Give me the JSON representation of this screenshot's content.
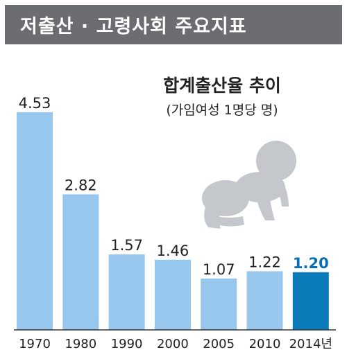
{
  "header": {
    "title": "저출산 · 고령사회 주요지표"
  },
  "chart_data": {
    "type": "bar",
    "title": "합계출산율 추이",
    "subtitle": "(가임여성 1명당 명)",
    "categories": [
      "1970",
      "1980",
      "1990",
      "2000",
      "2005",
      "2010",
      "2014년"
    ],
    "values": [
      4.53,
      2.82,
      1.57,
      1.46,
      1.07,
      1.22,
      1.2
    ],
    "value_labels": [
      "4.53",
      "2.82",
      "1.57",
      "1.46",
      "1.07",
      "1.22",
      "1.20"
    ],
    "ylim": [
      0,
      4.6
    ],
    "highlight_index": 6,
    "colors": {
      "bar": "#97c7ec",
      "highlight": "#0a7ab8",
      "baseline": "#333333"
    },
    "decoration_icon": "crawling-baby-icon"
  }
}
